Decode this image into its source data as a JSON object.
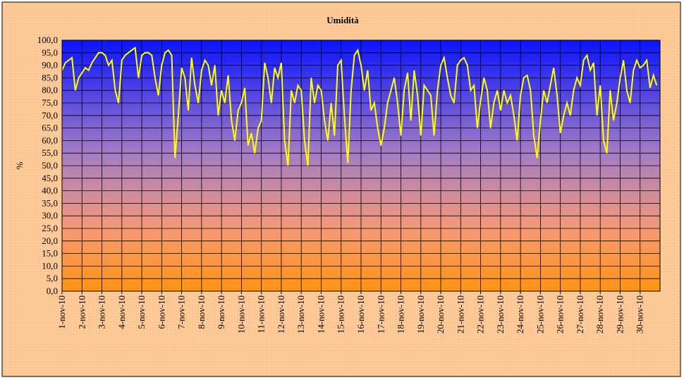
{
  "chart_data": {
    "type": "line",
    "title": "Umidità",
    "y_label": "%",
    "categories": [
      "1-nov-10",
      null,
      null,
      null,
      null,
      null,
      "2-nov-10",
      null,
      null,
      null,
      null,
      null,
      "3-nov-10",
      null,
      null,
      null,
      null,
      null,
      "4-nov-10",
      null,
      null,
      null,
      null,
      null,
      "5-nov-10",
      null,
      null,
      null,
      null,
      null,
      "6-nov-10",
      null,
      null,
      null,
      null,
      null,
      "7-nov-10",
      null,
      null,
      null,
      null,
      null,
      "8-nov-10",
      null,
      null,
      null,
      null,
      null,
      "9-nov-10",
      null,
      null,
      null,
      null,
      null,
      "10-nov-10",
      null,
      null,
      null,
      null,
      null,
      "11-nov-10",
      null,
      null,
      null,
      null,
      null,
      "12-nov-10",
      null,
      null,
      null,
      null,
      null,
      "13-nov-10",
      null,
      null,
      null,
      null,
      null,
      "14-nov-10",
      null,
      null,
      null,
      null,
      null,
      "15-nov-10",
      null,
      null,
      null,
      null,
      null,
      "16-nov-10",
      null,
      null,
      null,
      null,
      null,
      "17-nov-10",
      null,
      null,
      null,
      null,
      null,
      "18-nov-10",
      null,
      null,
      null,
      null,
      null,
      "19-nov-10",
      null,
      null,
      null,
      null,
      null,
      "20-nov-10",
      null,
      null,
      null,
      null,
      null,
      "21-nov-10",
      null,
      null,
      null,
      null,
      null,
      "22-nov-10",
      null,
      null,
      null,
      null,
      null,
      "23-nov-10",
      null,
      null,
      null,
      null,
      null,
      "24-nov-10",
      null,
      null,
      null,
      null,
      null,
      "25-nov-10",
      null,
      null,
      null,
      null,
      null,
      "26-nov-10",
      null,
      null,
      null,
      null,
      null,
      "27-nov-10",
      null,
      null,
      null,
      null,
      null,
      "28-nov-10",
      null,
      null,
      null,
      null,
      null,
      "29-nov-10",
      null,
      null,
      null,
      null,
      null,
      "30-nov-10",
      null,
      null,
      null,
      null,
      null
    ],
    "values": [
      88,
      91,
      92,
      93,
      80,
      85,
      87,
      89,
      88,
      91,
      93,
      95,
      95,
      94,
      90,
      92,
      80,
      75,
      92,
      94,
      95,
      96,
      97,
      85,
      94,
      95,
      95,
      94,
      85,
      78,
      90,
      95,
      96,
      94,
      53,
      70,
      89,
      85,
      72,
      93,
      82,
      75,
      88,
      92,
      90,
      82,
      90,
      70,
      80,
      75,
      86,
      68,
      60,
      72,
      75,
      81,
      58,
      63,
      55,
      65,
      68,
      91,
      85,
      75,
      89,
      85,
      91,
      60,
      50,
      80,
      75,
      82,
      80,
      60,
      50,
      85,
      75,
      82,
      80,
      68,
      60,
      75,
      62,
      90,
      92,
      70,
      51,
      80,
      94,
      96,
      90,
      80,
      88,
      72,
      75,
      65,
      58,
      65,
      75,
      80,
      85,
      75,
      62,
      80,
      87,
      68,
      88,
      78,
      62,
      82,
      80,
      78,
      62,
      80,
      90,
      93,
      85,
      78,
      75,
      90,
      92,
      93,
      90,
      80,
      82,
      65,
      76,
      85,
      80,
      65,
      75,
      80,
      72,
      80,
      75,
      78,
      70,
      60,
      78,
      85,
      86,
      80,
      62,
      53,
      68,
      80,
      75,
      82,
      89,
      78,
      63,
      70,
      75,
      70,
      80,
      85,
      82,
      92,
      94,
      88,
      91,
      70,
      82,
      60,
      55,
      80,
      68,
      75,
      85,
      92,
      80,
      75,
      88,
      92,
      89,
      90,
      92,
      81,
      86,
      82
    ],
    "color": "#ffff00",
    "ylim": [
      0,
      100
    ],
    "yticks": [
      {
        "value": 0,
        "label": "0,0"
      },
      {
        "value": 5,
        "label": "5,0"
      },
      {
        "value": 10,
        "label": "10,0"
      },
      {
        "value": 15,
        "label": "15,0"
      },
      {
        "value": 20,
        "label": "20,0"
      },
      {
        "value": 25,
        "label": "25,0"
      },
      {
        "value": 30,
        "label": "30,0"
      },
      {
        "value": 35,
        "label": "35,0"
      },
      {
        "value": 40,
        "label": "40,0"
      },
      {
        "value": 45,
        "label": "45,0"
      },
      {
        "value": 50,
        "label": "50,0"
      },
      {
        "value": 55,
        "label": "55,0"
      },
      {
        "value": 60,
        "label": "60,0"
      },
      {
        "value": 65,
        "label": "65,0"
      },
      {
        "value": 70,
        "label": "70,0"
      },
      {
        "value": 75,
        "label": "75,0"
      },
      {
        "value": 80,
        "label": "80,0"
      },
      {
        "value": 85,
        "label": "85,0"
      },
      {
        "value": 90,
        "label": "90,0"
      },
      {
        "value": 95,
        "label": "95,0"
      },
      {
        "value": 100,
        "label": "100,0"
      }
    ],
    "grid": true
  }
}
